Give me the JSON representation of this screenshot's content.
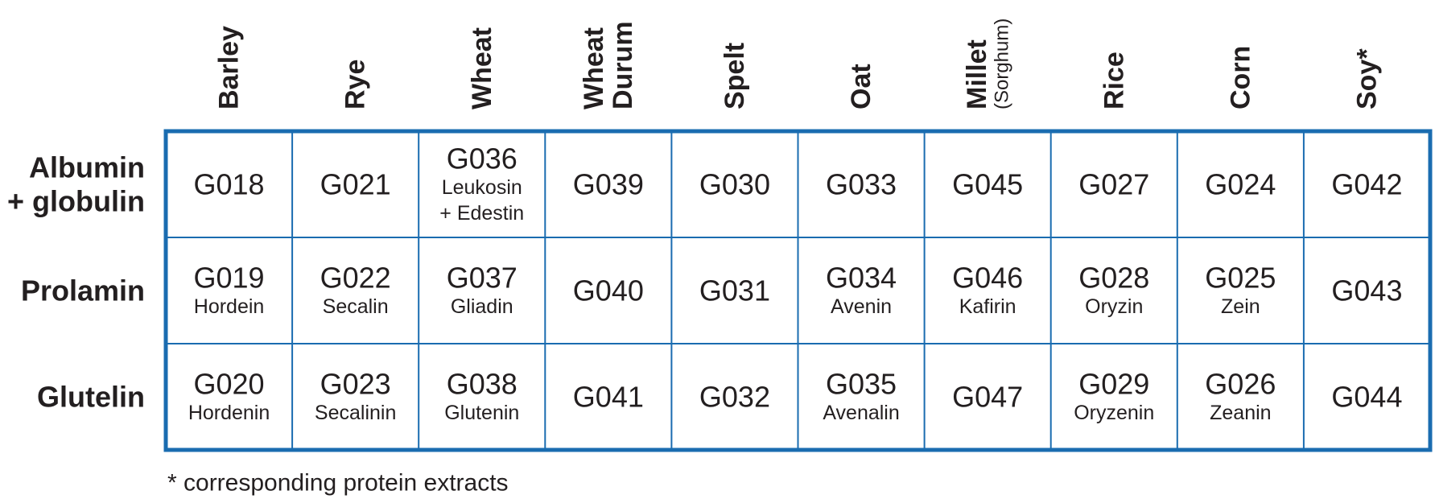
{
  "columns": [
    {
      "lines": [
        "Barley"
      ]
    },
    {
      "lines": [
        "Rye"
      ]
    },
    {
      "lines": [
        "Wheat"
      ]
    },
    {
      "lines": [
        "Wheat",
        "Durum"
      ]
    },
    {
      "lines": [
        "Spelt"
      ]
    },
    {
      "lines": [
        "Oat"
      ]
    },
    {
      "lines": [
        "Millet"
      ],
      "note": "(Sorghum)"
    },
    {
      "lines": [
        "Rice"
      ]
    },
    {
      "lines": [
        "Corn"
      ]
    },
    {
      "lines": [
        "Soy*"
      ]
    }
  ],
  "rows": [
    {
      "label": [
        "Albumin",
        "+ globulin"
      ],
      "cells": [
        {
          "code": "G018"
        },
        {
          "code": "G021"
        },
        {
          "code": "G036",
          "names": [
            "Leukosin",
            "+ Edestin"
          ]
        },
        {
          "code": "G039"
        },
        {
          "code": "G030"
        },
        {
          "code": "G033"
        },
        {
          "code": "G045"
        },
        {
          "code": "G027"
        },
        {
          "code": "G024"
        },
        {
          "code": "G042"
        }
      ]
    },
    {
      "label": [
        "Prolamin"
      ],
      "cells": [
        {
          "code": "G019",
          "names": [
            "Hordein"
          ]
        },
        {
          "code": "G022",
          "names": [
            "Secalin"
          ]
        },
        {
          "code": "G037",
          "names": [
            "Gliadin"
          ]
        },
        {
          "code": "G040"
        },
        {
          "code": "G031"
        },
        {
          "code": "G034",
          "names": [
            "Avenin"
          ]
        },
        {
          "code": "G046",
          "names": [
            "Kafirin"
          ]
        },
        {
          "code": "G028",
          "names": [
            "Oryzin"
          ]
        },
        {
          "code": "G025",
          "names": [
            "Zein"
          ]
        },
        {
          "code": "G043"
        }
      ]
    },
    {
      "label": [
        "Glutelin"
      ],
      "cells": [
        {
          "code": "G020",
          "names": [
            "Hordenin"
          ]
        },
        {
          "code": "G023",
          "names": [
            "Secalinin"
          ]
        },
        {
          "code": "G038",
          "names": [
            "Glutenin"
          ]
        },
        {
          "code": "G041"
        },
        {
          "code": "G032"
        },
        {
          "code": "G035",
          "names": [
            "Avenalin"
          ]
        },
        {
          "code": "G047"
        },
        {
          "code": "G029",
          "names": [
            "Oryzenin"
          ]
        },
        {
          "code": "G026",
          "names": [
            "Zeanin"
          ]
        },
        {
          "code": "G044"
        }
      ]
    }
  ],
  "footnote": "* corresponding protein extracts"
}
